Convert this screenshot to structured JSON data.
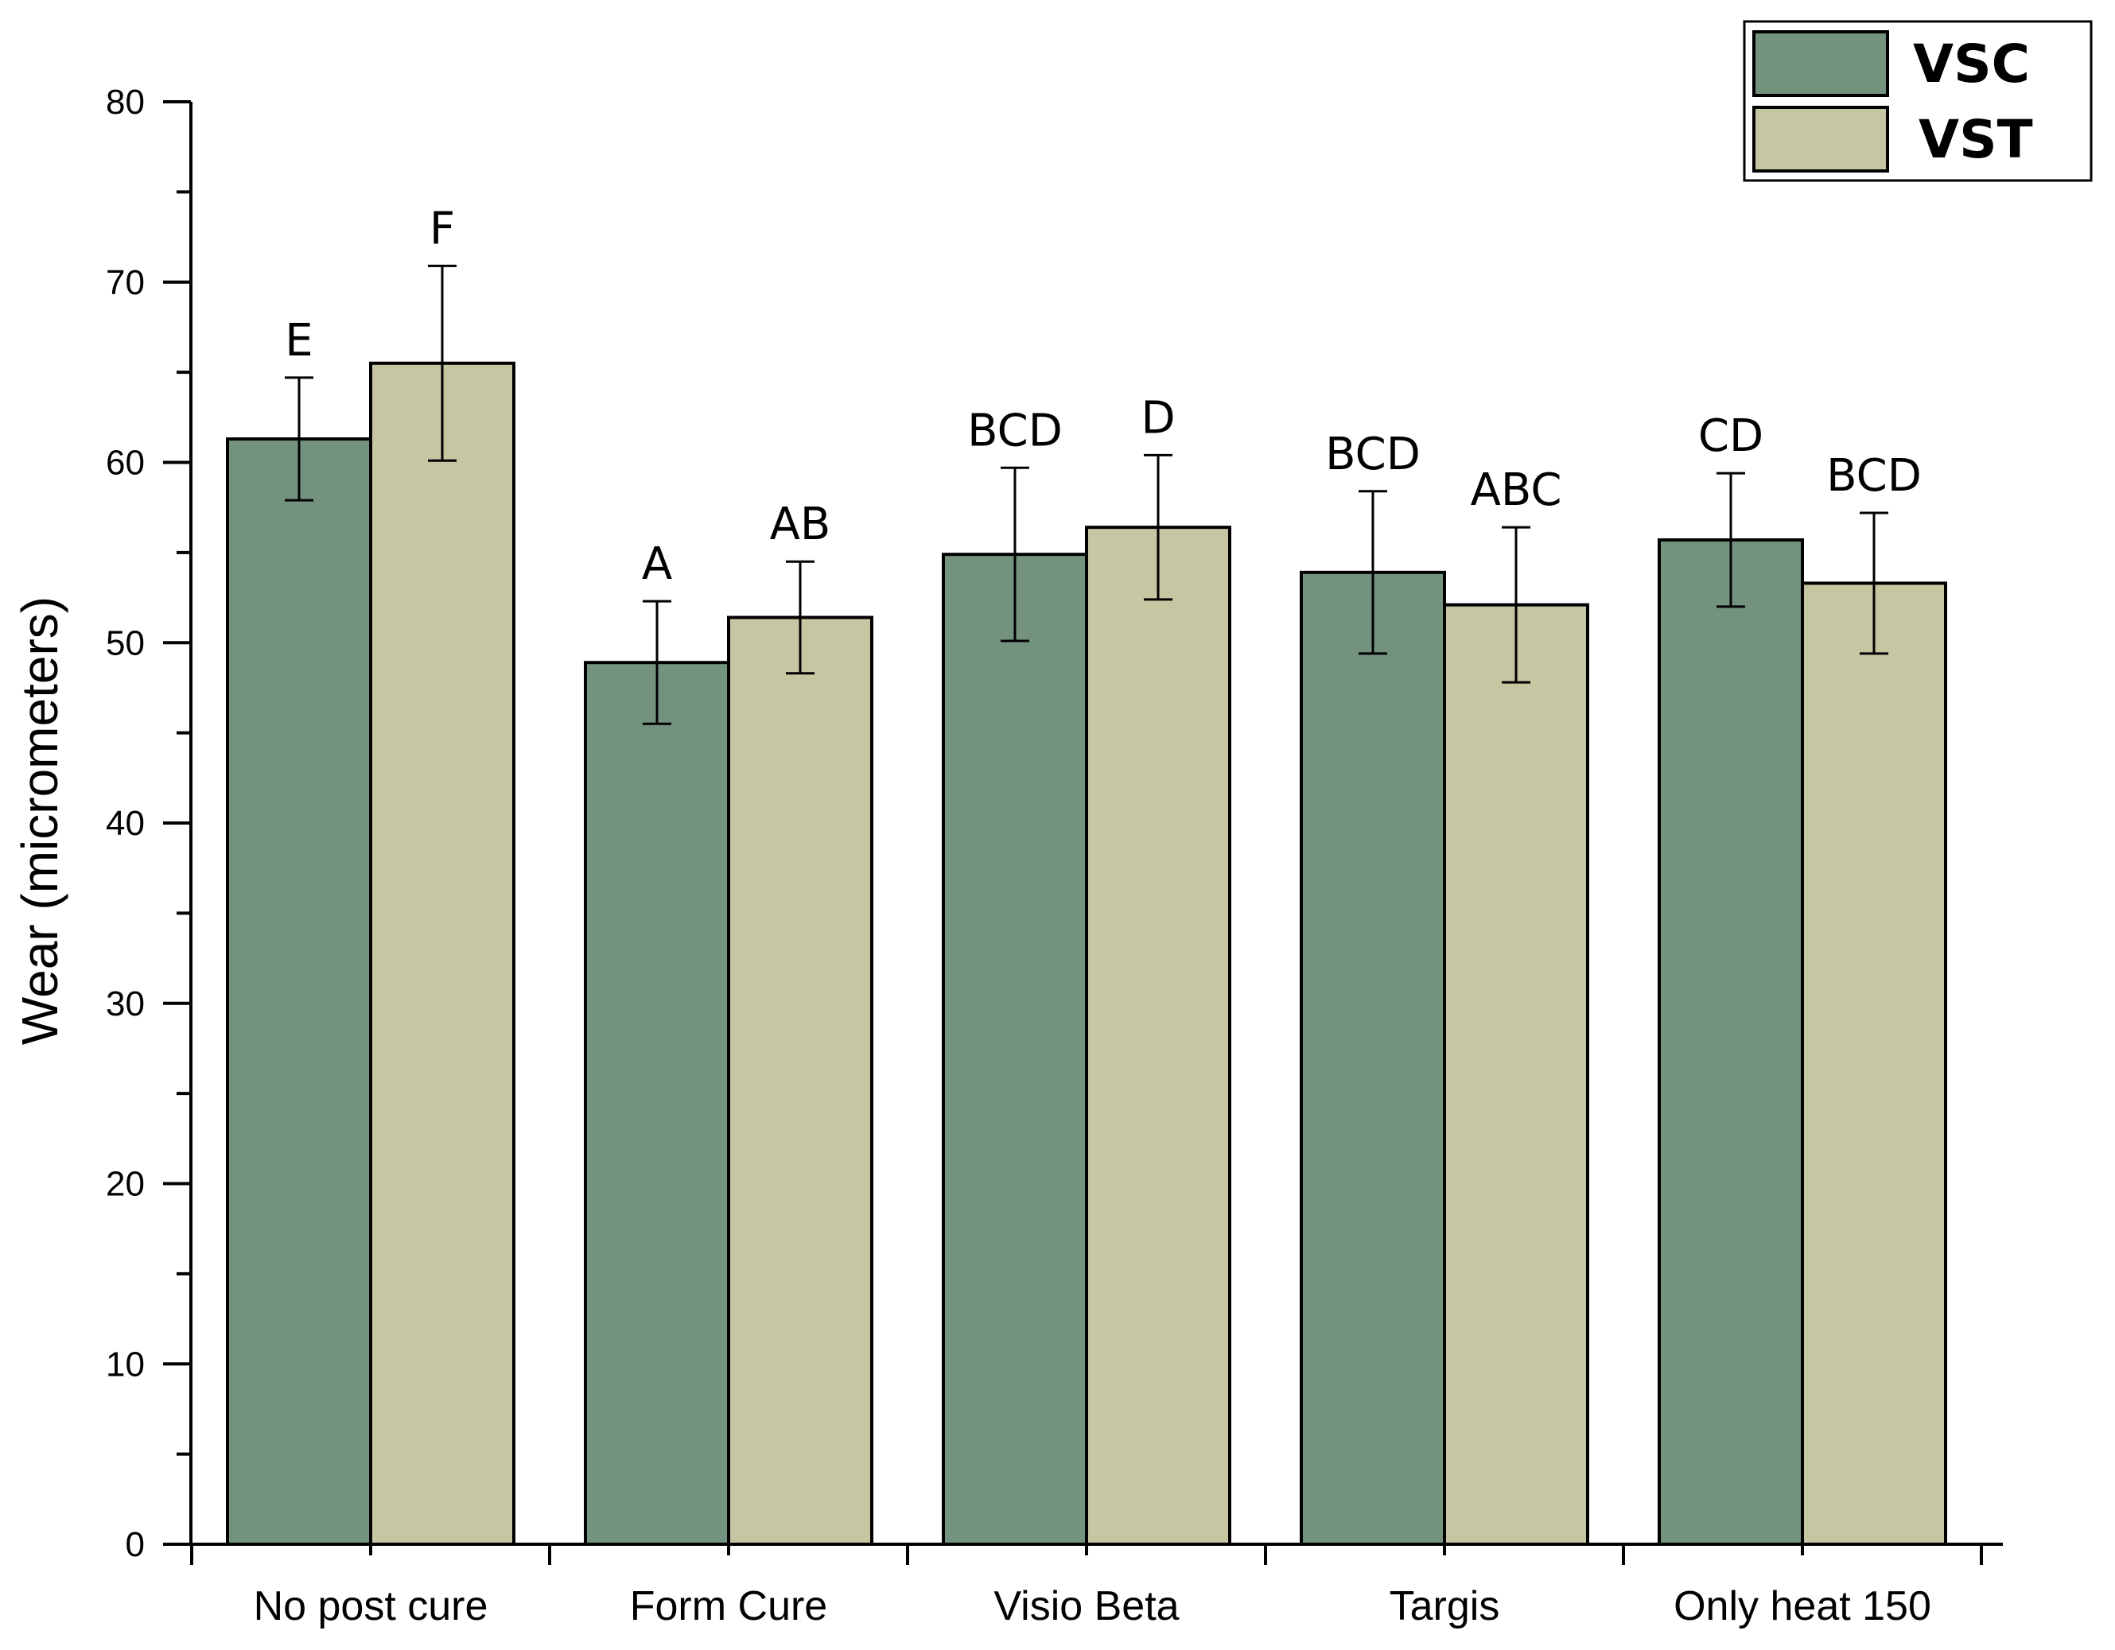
{
  "chart_data": {
    "type": "bar",
    "title": "",
    "xlabel": "",
    "ylabel": "Wear (micrometers)",
    "ylim": [
      0,
      80
    ],
    "yticks": [
      0,
      10,
      20,
      30,
      40,
      50,
      60,
      70,
      80
    ],
    "grid": false,
    "legend_position": "top-right",
    "categories": [
      "No post cure",
      "Form Cure",
      "Visio Beta",
      "Targis",
      "Only heat 150"
    ],
    "series": [
      {
        "name": "VSC",
        "color": "#74937f",
        "values": [
          61.3,
          48.9,
          54.9,
          53.9,
          55.7
        ],
        "errors": [
          3.4,
          3.4,
          4.8,
          4.5,
          3.7
        ],
        "significance": [
          "E",
          "A",
          "BCD",
          "BCD",
          "CD"
        ]
      },
      {
        "name": "VST",
        "color": "#c6c6a2",
        "values": [
          65.5,
          51.4,
          56.4,
          52.1,
          53.3
        ],
        "errors": [
          5.4,
          3.1,
          4.0,
          4.3,
          3.9
        ],
        "significance": [
          "F",
          "AB",
          "D",
          "ABC",
          "BCD"
        ]
      }
    ]
  }
}
